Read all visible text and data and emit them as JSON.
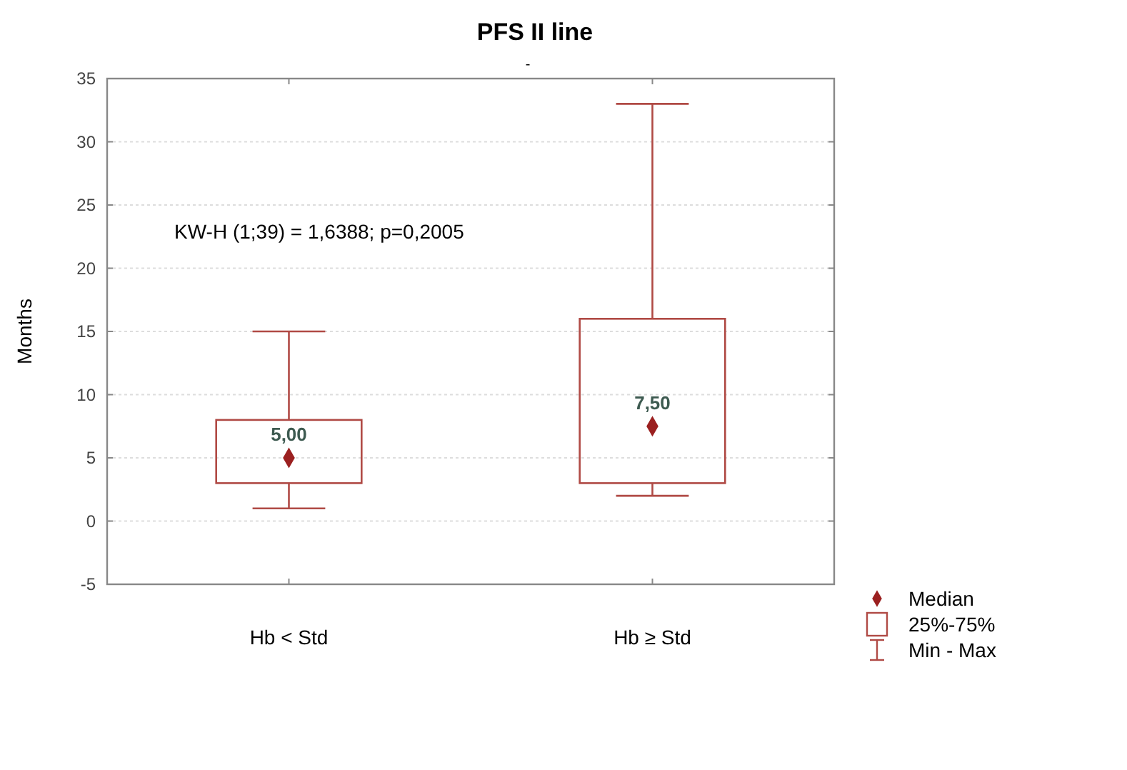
{
  "chart_data": {
    "type": "box",
    "title": "PFS II line",
    "subtitle": "-",
    "ylabel": "Months",
    "categories": [
      "Hb < Std",
      "Hb ≥ Std"
    ],
    "series": [
      {
        "name": "25%-75%",
        "color": "#b04a45",
        "boxes": [
          {
            "low": 1,
            "q1": 3,
            "median": 5,
            "q3": 8,
            "high": 15
          },
          {
            "low": 2,
            "q1": 3,
            "median": 7.5,
            "q3": 16,
            "high": 33
          }
        ],
        "value_labels": [
          "5,00",
          "7,50"
        ]
      }
    ],
    "ylim": [
      -5,
      35
    ],
    "yticks": [
      -5,
      0,
      5,
      10,
      15,
      20,
      25,
      30,
      35
    ],
    "grid": "y",
    "legend": "bottom right",
    "marker": "diamond",
    "annotations": [
      "KW-H (1;39) = 1,6388; p=0,2005",
      "Median",
      "Min - Max"
    ]
  }
}
